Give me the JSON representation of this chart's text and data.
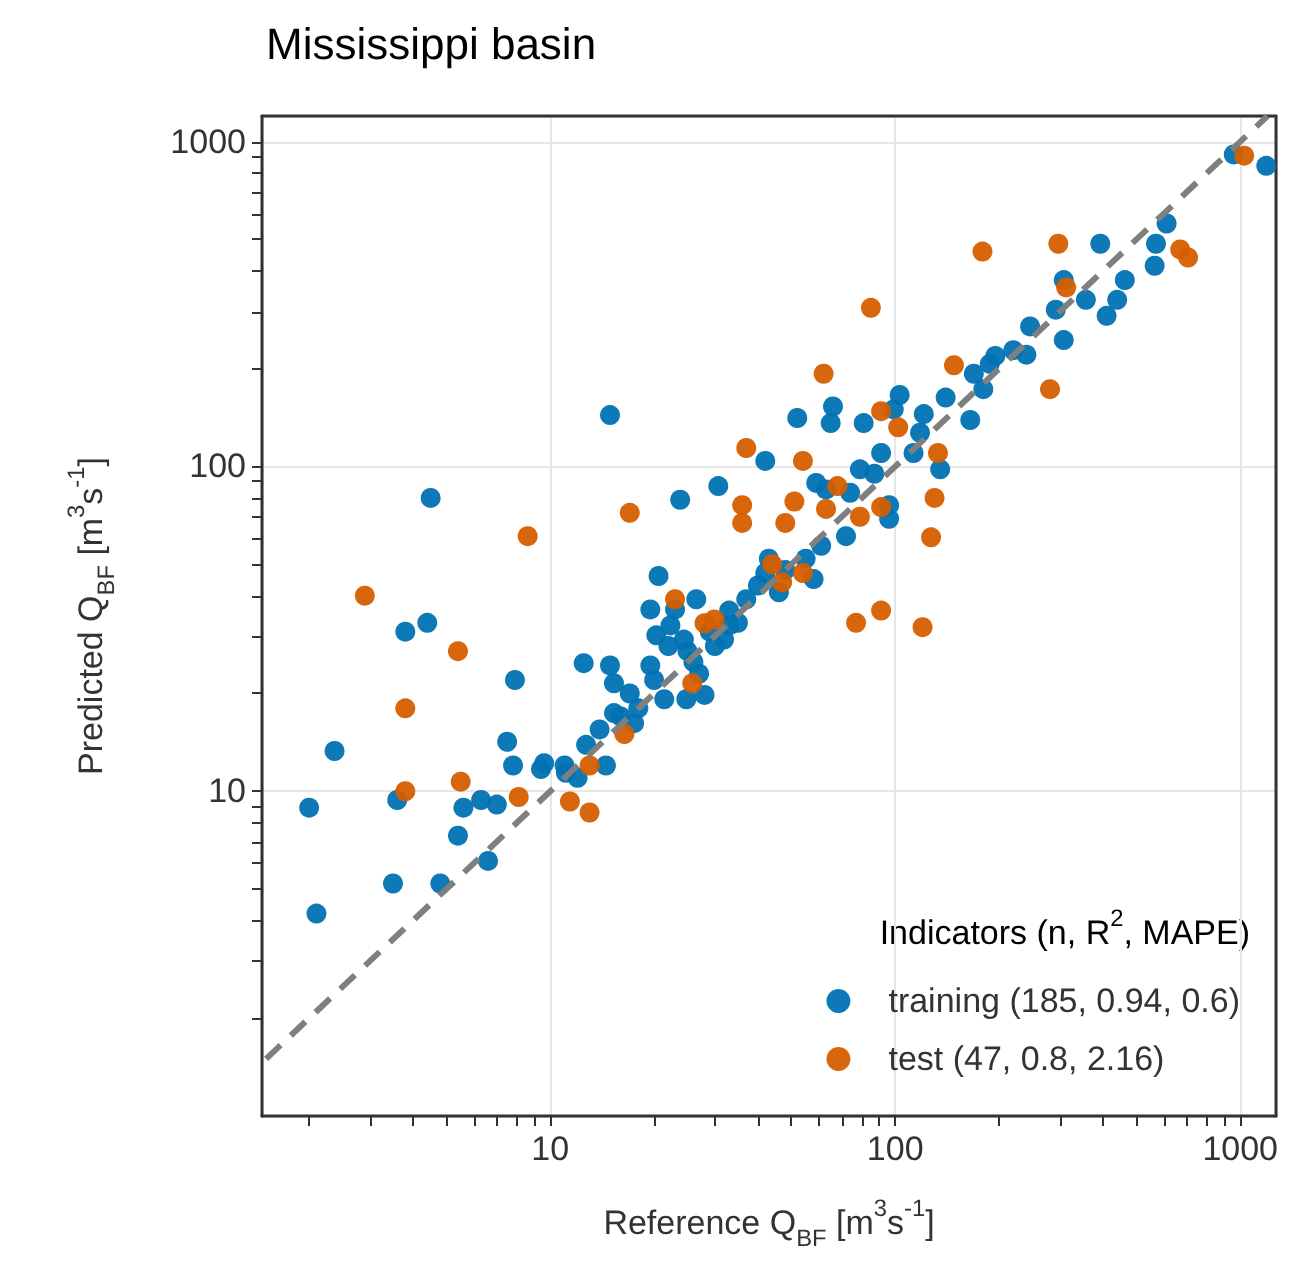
{
  "chart_data": {
    "type": "scatter",
    "title": "Mississippi basin",
    "xlabel": "Reference Q$_{BF}$ [m$^{3}$s$^{-1}$]",
    "ylabel": "Predicted Q$_{BF}$ [m$^{3}$s$^{-1}$]",
    "legend_title": "Indicators (n, R$^{2}$, MAPE)",
    "legend": "bottom right",
    "grid": true,
    "marker": "circle",
    "log": "xy",
    "xlim": [
      1.46,
      1270
    ],
    "ylim": [
      1,
      1200
    ],
    "xticks": [
      {
        "value": 2,
        "label": null
      },
      {
        "value": 3,
        "label": null
      },
      {
        "value": 4,
        "label": null
      },
      {
        "value": 5,
        "label": null
      },
      {
        "value": 6,
        "label": null
      },
      {
        "value": 7,
        "label": null
      },
      {
        "value": 8,
        "label": null
      },
      {
        "value": 9,
        "label": null
      },
      10,
      {
        "value": 20,
        "label": null
      },
      {
        "value": 30,
        "label": null
      },
      {
        "value": 40,
        "label": null
      },
      {
        "value": 50,
        "label": null
      },
      {
        "value": 60,
        "label": null
      },
      {
        "value": 70,
        "label": null
      },
      {
        "value": 80,
        "label": null
      },
      {
        "value": 90,
        "label": null
      },
      100,
      {
        "value": 200,
        "label": null
      },
      {
        "value": 300,
        "label": null
      },
      {
        "value": 400,
        "label": null
      },
      {
        "value": 500,
        "label": null
      },
      {
        "value": 600,
        "label": null
      },
      {
        "value": 700,
        "label": null
      },
      {
        "value": 800,
        "label": null
      },
      {
        "value": 900,
        "label": null
      },
      1000
    ],
    "yticks": [
      {
        "value": 2,
        "label": null
      },
      {
        "value": 3,
        "label": null
      },
      {
        "value": 4,
        "label": null
      },
      {
        "value": 5,
        "label": null
      },
      {
        "value": 6,
        "label": null
      },
      {
        "value": 7,
        "label": null
      },
      {
        "value": 8,
        "label": null
      },
      {
        "value": 9,
        "label": null
      },
      10,
      {
        "value": 20,
        "label": null
      },
      {
        "value": 30,
        "label": null
      },
      {
        "value": 40,
        "label": null
      },
      {
        "value": 50,
        "label": null
      },
      {
        "value": 60,
        "label": null
      },
      {
        "value": 70,
        "label": null
      },
      {
        "value": 80,
        "label": null
      },
      {
        "value": 90,
        "label": null
      },
      100,
      {
        "value": 200,
        "label": null
      },
      {
        "value": 300,
        "label": null
      },
      {
        "value": 400,
        "label": null
      },
      {
        "value": 500,
        "label": null
      },
      {
        "value": 600,
        "label": null
      },
      {
        "value": 700,
        "label": null
      },
      {
        "value": 800,
        "label": null
      },
      {
        "value": 900,
        "label": null
      },
      1000
    ],
    "series": [
      {
        "type": "line",
        "color": "#7f7f7f",
        "line_style": "dashed",
        "marker": "none",
        "x": [
          1.5,
          1200
        ],
        "values": [
          1.5,
          1200
        ]
      },
      {
        "name": "training (185, 0.94, 0.6)",
        "color": "#0072b2",
        "x": [
          14.9,
          4.5,
          23.8,
          30.7,
          20.6,
          3.8,
          4.4,
          2.37,
          2,
          2.1,
          3.5,
          3.6,
          4.8,
          5.4,
          6.6,
          5.6,
          6.3,
          7,
          7.9,
          7.5,
          7.8,
          9.4,
          9.6,
          11.1,
          12.5,
          14.9,
          15.3,
          12.7,
          13.9,
          14.5,
          15.3,
          17.5,
          19.5,
          21.4,
          24.8,
          28,
          20.3,
          22.3,
          24.4,
          31.9,
          33,
          19.5,
          23,
          26.5,
          1190,
          958,
          612,
          570,
          565,
          463,
          440,
          410,
          357,
          393,
          308,
          292,
          308,
          246,
          240,
          220,
          195,
          188,
          169,
          180,
          165,
          140,
          121,
          103,
          99,
          81,
          66,
          65,
          52,
          42,
          118,
          113,
          135,
          91,
          79,
          74,
          63,
          59,
          96,
          96,
          72,
          61,
          55,
          54,
          48,
          43,
          42,
          40,
          37,
          46,
          58,
          87,
          18,
          20,
          25,
          27,
          30,
          35,
          17,
          22,
          11,
          12,
          16,
          26,
          33,
          29
        ],
        "values": [
          144,
          80,
          79,
          87,
          46,
          31,
          33,
          13.3,
          8.9,
          4.2,
          5.2,
          9.4,
          5.2,
          7.3,
          6.1,
          8.9,
          9.4,
          9.1,
          22,
          14.2,
          12,
          11.7,
          12.2,
          11.4,
          24.8,
          24.4,
          21.5,
          13.9,
          15.5,
          12,
          17.4,
          16.2,
          24.4,
          19.2,
          19.2,
          19.8,
          30.2,
          32.4,
          29.3,
          29.3,
          32.4,
          36.3,
          36.3,
          39,
          843,
          914,
          560,
          485,
          415,
          375,
          326,
          291,
          326,
          485,
          375,
          304,
          245,
          270,
          221,
          228,
          219,
          207,
          193,
          173,
          139,
          163,
          145,
          166,
          150,
          136,
          153,
          136,
          141,
          104,
          127,
          110,
          98,
          110,
          98,
          83,
          85,
          89,
          76,
          69,
          61,
          57,
          52,
          null,
          48,
          52,
          47,
          43,
          39,
          41,
          45,
          95,
          18,
          22,
          27,
          23,
          28,
          33,
          20,
          28,
          12,
          11,
          17,
          25,
          36,
          31
        ]
      },
      {
        "name": "test (47, 0.8, 2.16)",
        "color": "#d55e00",
        "x": [
          2.9,
          3.8,
          3.8,
          5.4,
          5.5,
          8.1,
          8.6,
          11.4,
          13,
          13,
          16.4,
          25.8,
          28,
          29.9,
          23,
          17,
          37,
          36,
          1027,
          670,
          706,
          297,
          179,
          313,
          85,
          62,
          148,
          281,
          54,
          91,
          102,
          133,
          130,
          127,
          68,
          51,
          63,
          79,
          91,
          48,
          36,
          54,
          47,
          77,
          91,
          120,
          44
        ],
        "values": [
          40,
          18,
          10,
          27,
          10.7,
          9.6,
          61,
          9.3,
          8.6,
          12,
          15,
          21.5,
          32.9,
          33.8,
          39,
          72,
          114,
          76,
          906,
          466,
          440,
          485,
          459,
          356,
          308,
          193,
          205,
          173,
          104,
          148,
          132,
          110,
          80,
          60.5,
          87,
          78,
          74,
          70,
          75,
          67,
          67,
          47,
          44,
          33,
          36,
          32,
          50
        ]
      }
    ]
  }
}
